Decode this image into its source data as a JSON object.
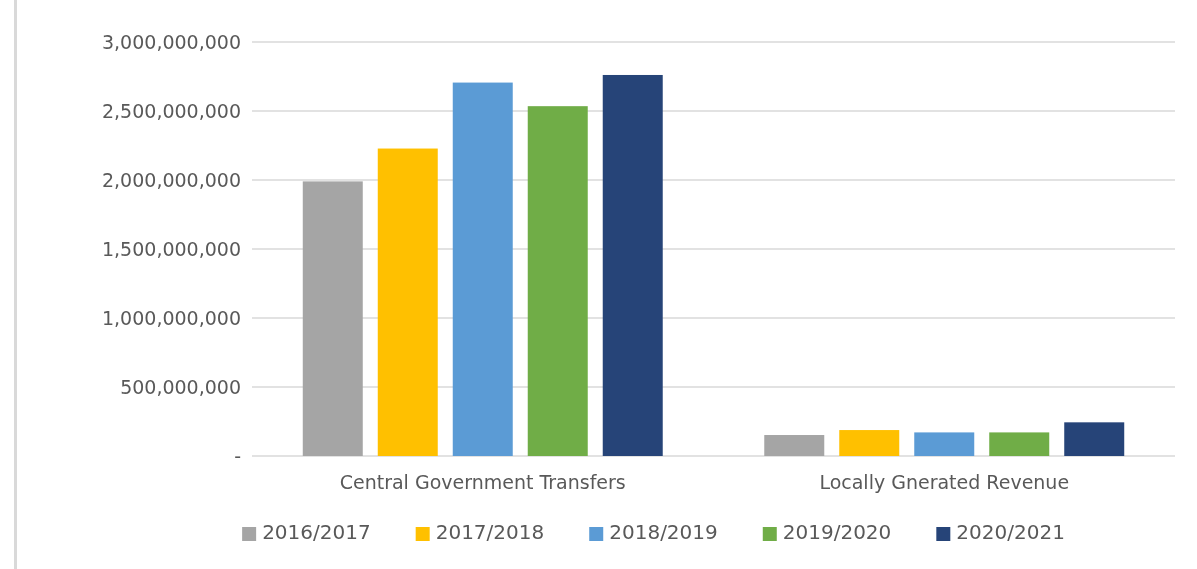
{
  "chart_data": {
    "type": "bar",
    "categories": [
      "Central Government Transfers",
      "Locally Gnerated Revenue"
    ],
    "series": [
      {
        "name": "2016/2017",
        "color": "#a5a5a5",
        "values": [
          1990000000,
          152000000
        ]
      },
      {
        "name": "2017/2018",
        "color": "#ffc000",
        "values": [
          2228000000,
          188000000
        ]
      },
      {
        "name": "2018/2019",
        "color": "#5b9bd5",
        "values": [
          2706000000,
          171000000
        ]
      },
      {
        "name": "2019/2020",
        "color": "#70ad47",
        "values": [
          2535000000,
          171000000
        ]
      },
      {
        "name": "2020/2021",
        "color": "#264478",
        "values": [
          2761000000,
          244000000
        ]
      }
    ],
    "ylim": [
      0,
      3000000000
    ],
    "yticks": [
      {
        "value": 0,
        "label": "-"
      },
      {
        "value": 500000000,
        "label": "500,000,000"
      },
      {
        "value": 1000000000,
        "label": "1,000,000,000"
      },
      {
        "value": 1500000000,
        "label": "1,500,000,000"
      },
      {
        "value": 2000000000,
        "label": "2,000,000,000"
      },
      {
        "value": 2500000000,
        "label": "2,500,000,000"
      },
      {
        "value": 3000000000,
        "label": "3,000,000,000"
      }
    ],
    "grid": "y",
    "legend": "bottom"
  }
}
